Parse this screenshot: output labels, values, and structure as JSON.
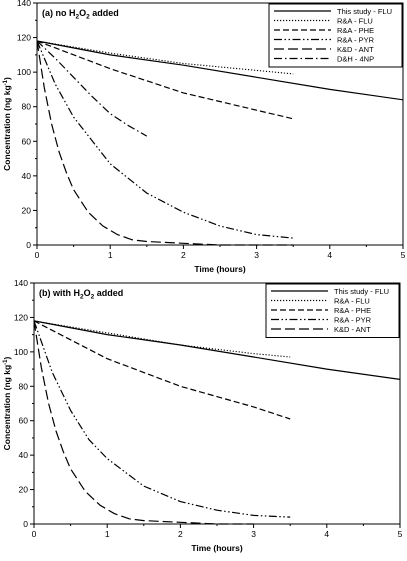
{
  "chart_data": [
    {
      "type": "line",
      "title_prefix": "(a) no H",
      "title_sub": "2",
      "title_mid": "O",
      "title_sub2": "2",
      "title_suffix": " added",
      "xlabel": "Time (hours)",
      "ylabel_main": "Concentration (ng kg",
      "ylabel_sup": "-1",
      "ylabel_end": ")",
      "xlim": [
        0,
        5
      ],
      "ylim": [
        0,
        140
      ],
      "xticks": [
        "0",
        "1",
        "2",
        "3",
        "4",
        "5"
      ],
      "yticks": [
        "0",
        "20",
        "40",
        "60",
        "80",
        "100",
        "120",
        "140"
      ],
      "legend_position": "top-right",
      "series": [
        {
          "name": "This study - FLU",
          "style": "solid",
          "x": [
            0,
            1,
            2,
            3,
            4,
            5
          ],
          "y": [
            118,
            110,
            104,
            97,
            90,
            84
          ]
        },
        {
          "name": "R&A - FLU",
          "style": "dotted",
          "x": [
            0,
            1,
            2,
            3,
            3.5
          ],
          "y": [
            118,
            111,
            105,
            101,
            99
          ]
        },
        {
          "name": "R&A - PHE",
          "style": "dashed",
          "x": [
            0,
            1,
            2,
            3,
            3.5
          ],
          "y": [
            118,
            102,
            88,
            78,
            73
          ]
        },
        {
          "name": "R&A - PYR",
          "style": "dashdotdot",
          "x": [
            0,
            0.25,
            0.5,
            1,
            1.5,
            2,
            2.5,
            3,
            3.5
          ],
          "y": [
            118,
            93,
            74,
            47,
            30,
            19,
            11,
            6,
            4
          ]
        },
        {
          "name": "K&D - ANT",
          "style": "longdash",
          "x": [
            0,
            0.1,
            0.2,
            0.3,
            0.4,
            0.5,
            0.7,
            0.9,
            1.1,
            1.3,
            1.5,
            2,
            2.5,
            3,
            3.5
          ],
          "y": [
            118,
            91,
            70,
            54,
            42,
            32,
            19,
            11,
            6,
            3,
            2,
            1,
            0,
            0,
            0
          ]
        },
        {
          "name": "D&H - 4NP",
          "style": "dashdot",
          "x": [
            0,
            0.25,
            0.5,
            0.75,
            1,
            1.25,
            1.5
          ],
          "y": [
            118,
            108,
            97,
            86,
            76,
            69,
            63
          ]
        }
      ]
    },
    {
      "type": "line",
      "title_prefix": "(b) with H",
      "title_sub": "2",
      "title_mid": "O",
      "title_sub2": "2",
      "title_suffix": " added",
      "xlabel": "Time (hours)",
      "ylabel_main": "Concentration (ng kg",
      "ylabel_sup": "-1",
      "ylabel_end": ")",
      "xlim": [
        0,
        5
      ],
      "ylim": [
        0,
        140
      ],
      "xticks": [
        "0",
        "1",
        "2",
        "3",
        "4",
        "5"
      ],
      "yticks": [
        "0",
        "20",
        "40",
        "60",
        "80",
        "100",
        "120",
        "140"
      ],
      "legend_position": "top-right",
      "series": [
        {
          "name": "This study - FLU",
          "style": "solid",
          "x": [
            0,
            1,
            2,
            3,
            4,
            5
          ],
          "y": [
            118,
            110,
            104,
            97,
            90,
            84
          ]
        },
        {
          "name": "R&A - FLU",
          "style": "dotted",
          "x": [
            0,
            1,
            2,
            3,
            3.5
          ],
          "y": [
            118,
            111,
            104,
            99,
            97
          ]
        },
        {
          "name": "R&A - PHE",
          "style": "dashed",
          "x": [
            0,
            1,
            2,
            3,
            3.5
          ],
          "y": [
            118,
            96,
            80,
            68,
            61
          ]
        },
        {
          "name": "R&A - PYR",
          "style": "dashdotdot",
          "x": [
            0,
            0.25,
            0.5,
            0.75,
            1,
            1.5,
            2,
            2.5,
            3,
            3.5
          ],
          "y": [
            118,
            88,
            66,
            49,
            38,
            22,
            13,
            8,
            5,
            4
          ]
        },
        {
          "name": "K&D - ANT",
          "style": "longdash",
          "x": [
            0,
            0.1,
            0.2,
            0.3,
            0.4,
            0.5,
            0.7,
            0.9,
            1.1,
            1.3,
            1.5,
            2,
            2.5,
            3
          ],
          "y": [
            118,
            91,
            70,
            54,
            42,
            32,
            19,
            11,
            6,
            3,
            2,
            1,
            0,
            0
          ]
        }
      ]
    }
  ]
}
